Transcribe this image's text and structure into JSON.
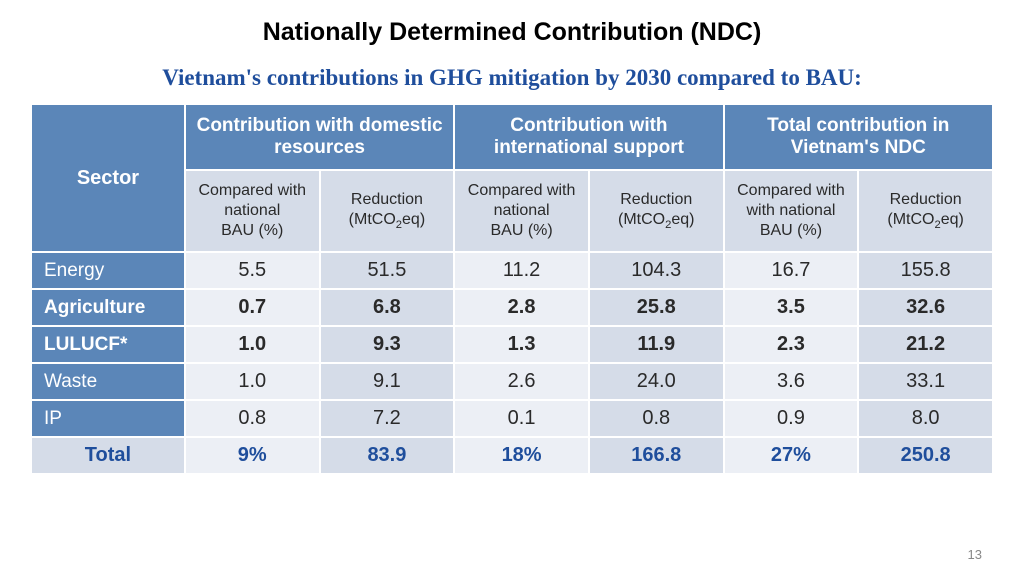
{
  "title": "Nationally Determined Contribution (NDC)",
  "subtitle": "Vietnam's contributions in GHG mitigation by 2030 compared to BAU:",
  "headers": {
    "sector": "Sector",
    "groups": [
      "Contribution with domestic resources",
      "Contribution with international support",
      "Total contribution in Vietnam's NDC"
    ],
    "sub_compared_pre": "Compared with",
    "sub_compared_mid": "national",
    "sub_compared_post": "BAU (%)",
    "sub_compared_mid2": "with  national",
    "sub_reduction_pre": "Reduction",
    "sub_reduction_post": "eq)",
    "sub_reduction_mt": "(MtCO"
  },
  "rows": [
    {
      "label": "Energy",
      "bold": false,
      "vals": [
        "5.5",
        "51.5",
        "11.2",
        "104.3",
        "16.7",
        "155.8"
      ]
    },
    {
      "label": "Agriculture",
      "bold": true,
      "vals": [
        "0.7",
        "6.8",
        "2.8",
        "25.8",
        "3.5",
        "32.6"
      ]
    },
    {
      "label": "LULUCF*",
      "bold": true,
      "vals": [
        "1.0",
        "9.3",
        "1.3",
        "11.9",
        "2.3",
        "21.2"
      ]
    },
    {
      "label": "Waste",
      "bold": false,
      "vals": [
        "1.0",
        "9.1",
        "2.6",
        "24.0",
        "3.6",
        "33.1"
      ]
    },
    {
      "label": "IP",
      "bold": false,
      "vals": [
        "0.8",
        "7.2",
        "0.1",
        "0.8",
        "0.9",
        "8.0"
      ]
    }
  ],
  "total": {
    "label": "Total",
    "vals": [
      "9%",
      "83.9",
      "18%",
      "166.8",
      "27%",
      "250.8"
    ]
  },
  "page": "13"
}
